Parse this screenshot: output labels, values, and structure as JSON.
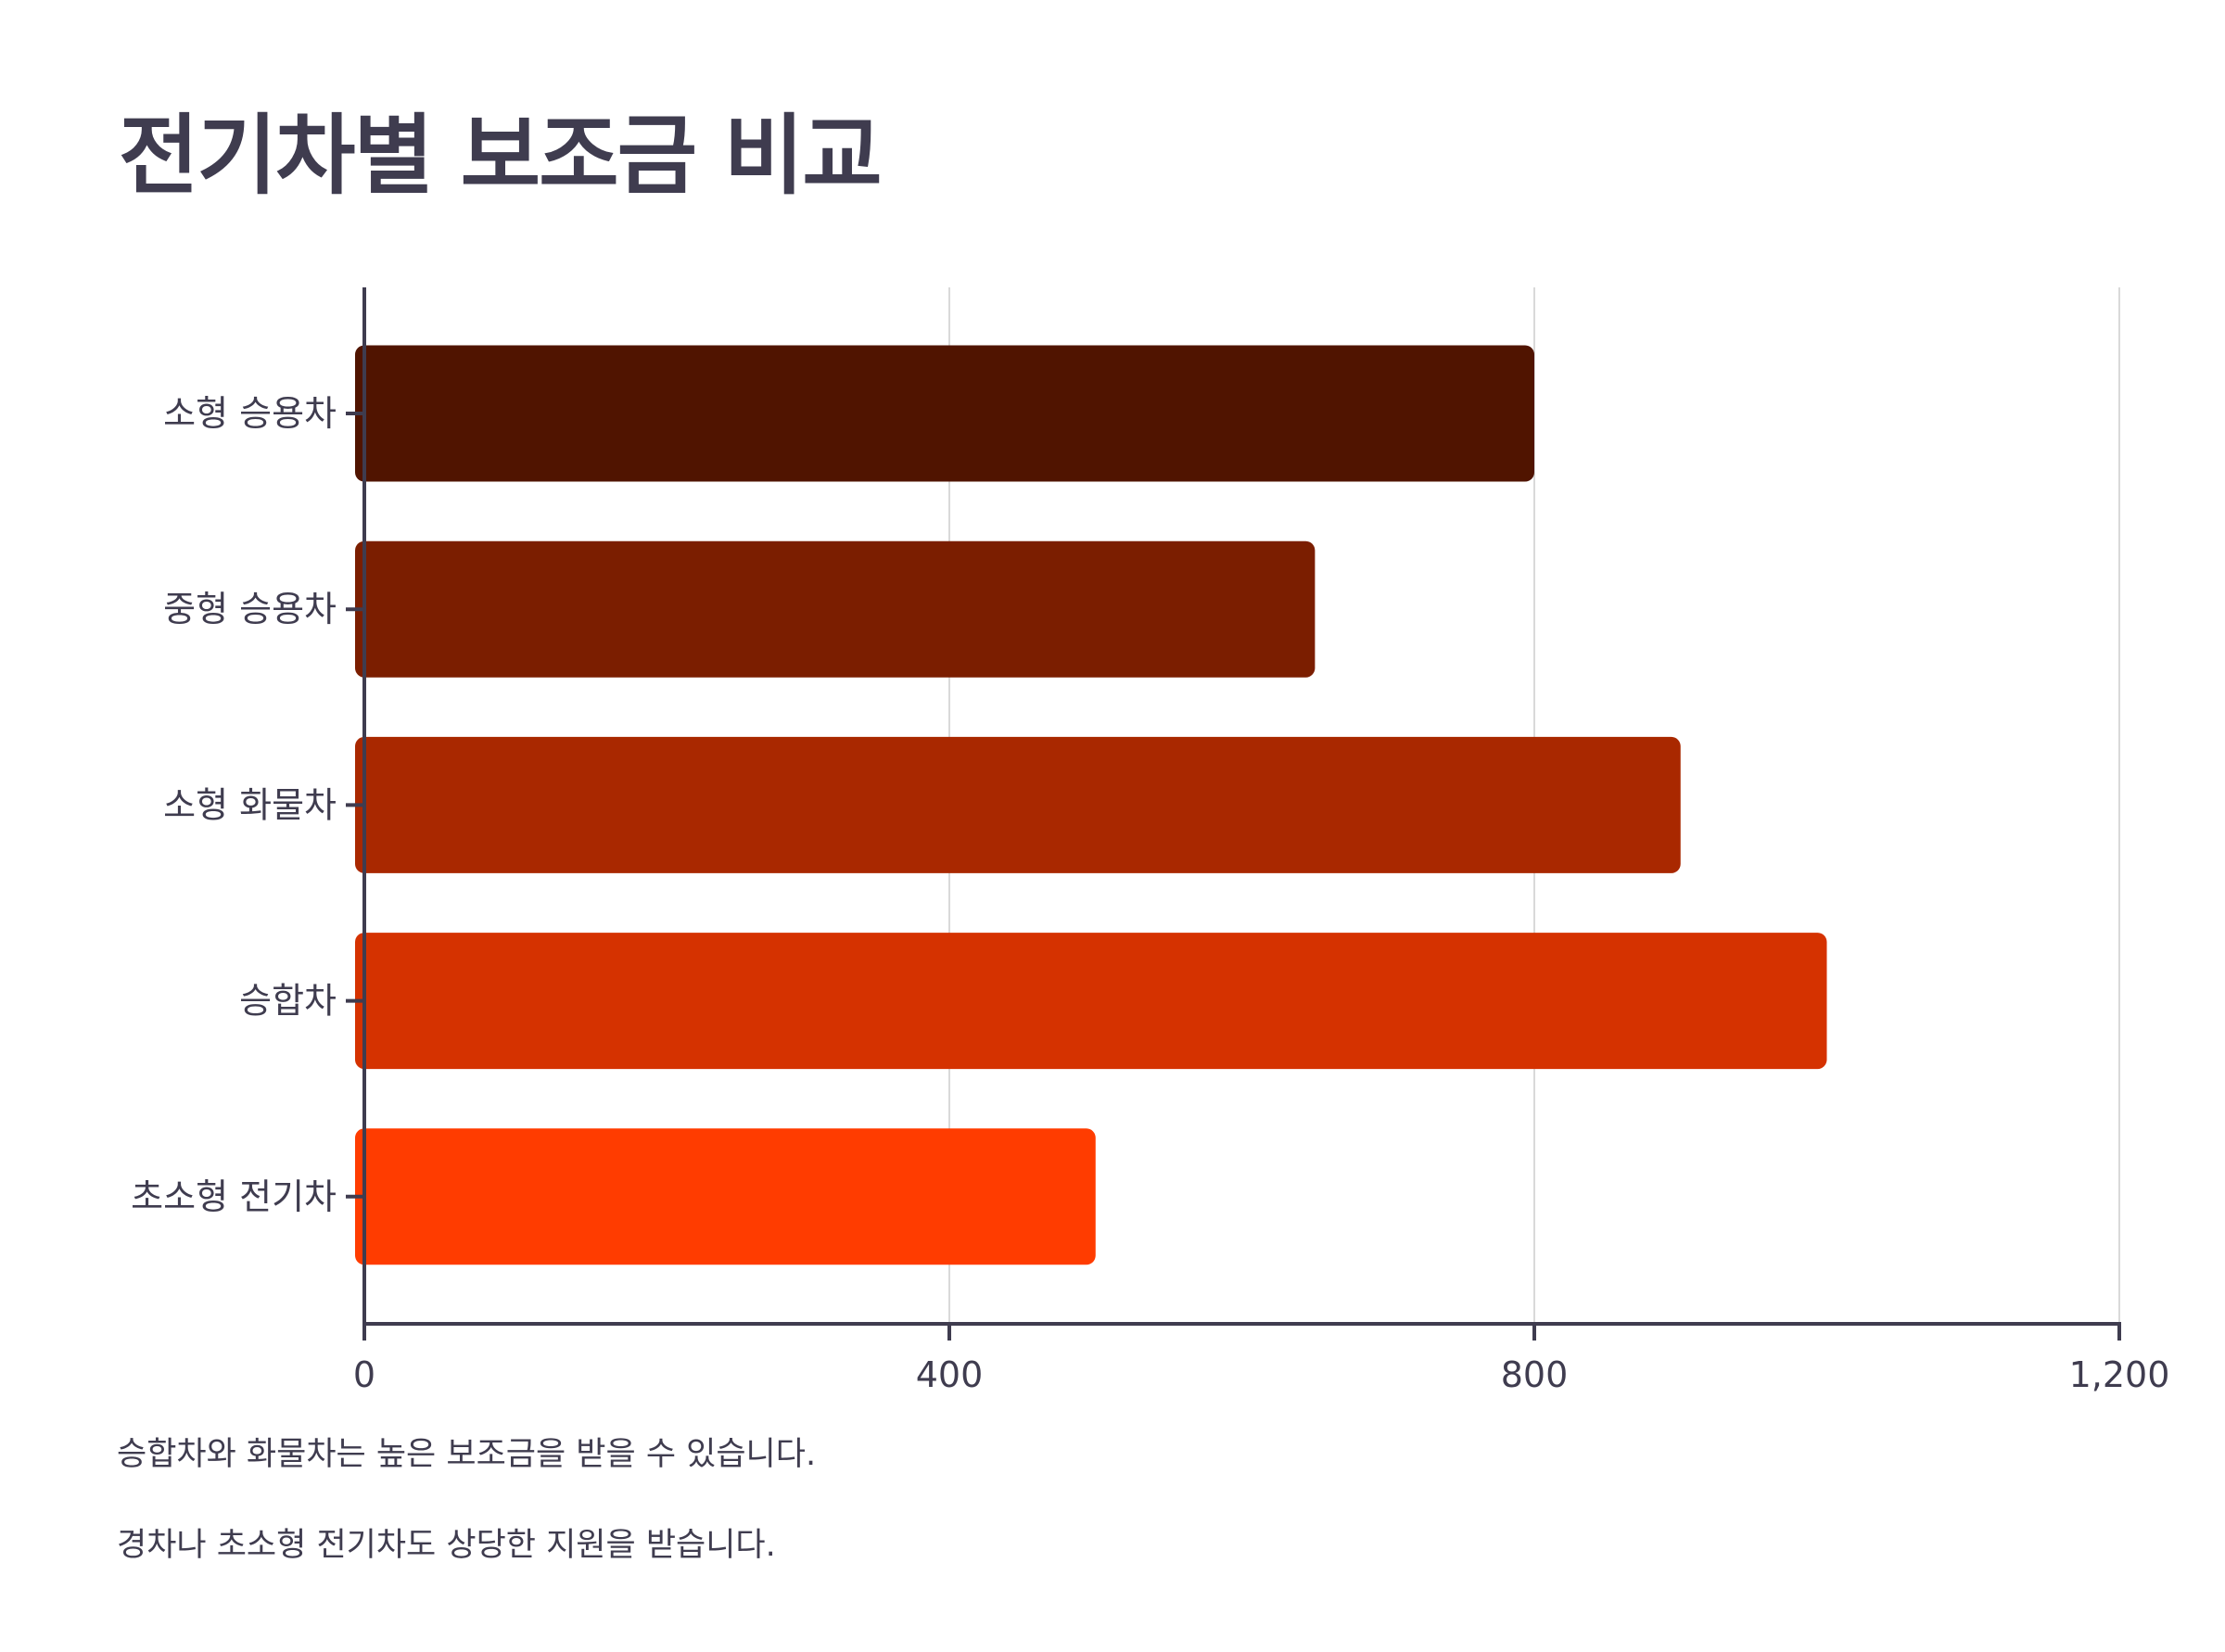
{
  "chart_data": {
    "type": "bar",
    "orientation": "horizontal",
    "title": "전기차별 보조금 비교",
    "categories": [
      "소형 승용차",
      "중형 승용차",
      "소형 화물차",
      "승합차",
      "초소형 전기차"
    ],
    "values": [
      800,
      650,
      900,
      1000,
      500
    ],
    "colors": [
      "#501400",
      "#7b1e00",
      "#a92800",
      "#d53200",
      "#ff3c00"
    ],
    "xlim": [
      0,
      1200
    ],
    "xticks": [
      0,
      400,
      800,
      1200
    ],
    "xtick_labels": [
      "0",
      "400",
      "800",
      "1,200"
    ],
    "xlabel": "",
    "ylabel": "",
    "grid": "vertical",
    "annotations": [
      "승합차와 화물차는 높은 보조금을 받을 수 있습니다.",
      "경차나 초소형 전기차도 상당한 지원을 받습니다."
    ]
  },
  "style": {
    "text_color": "#3f3c4f",
    "axis_color": "#3f3c4f",
    "grid_color": "#d9d9d9"
  }
}
